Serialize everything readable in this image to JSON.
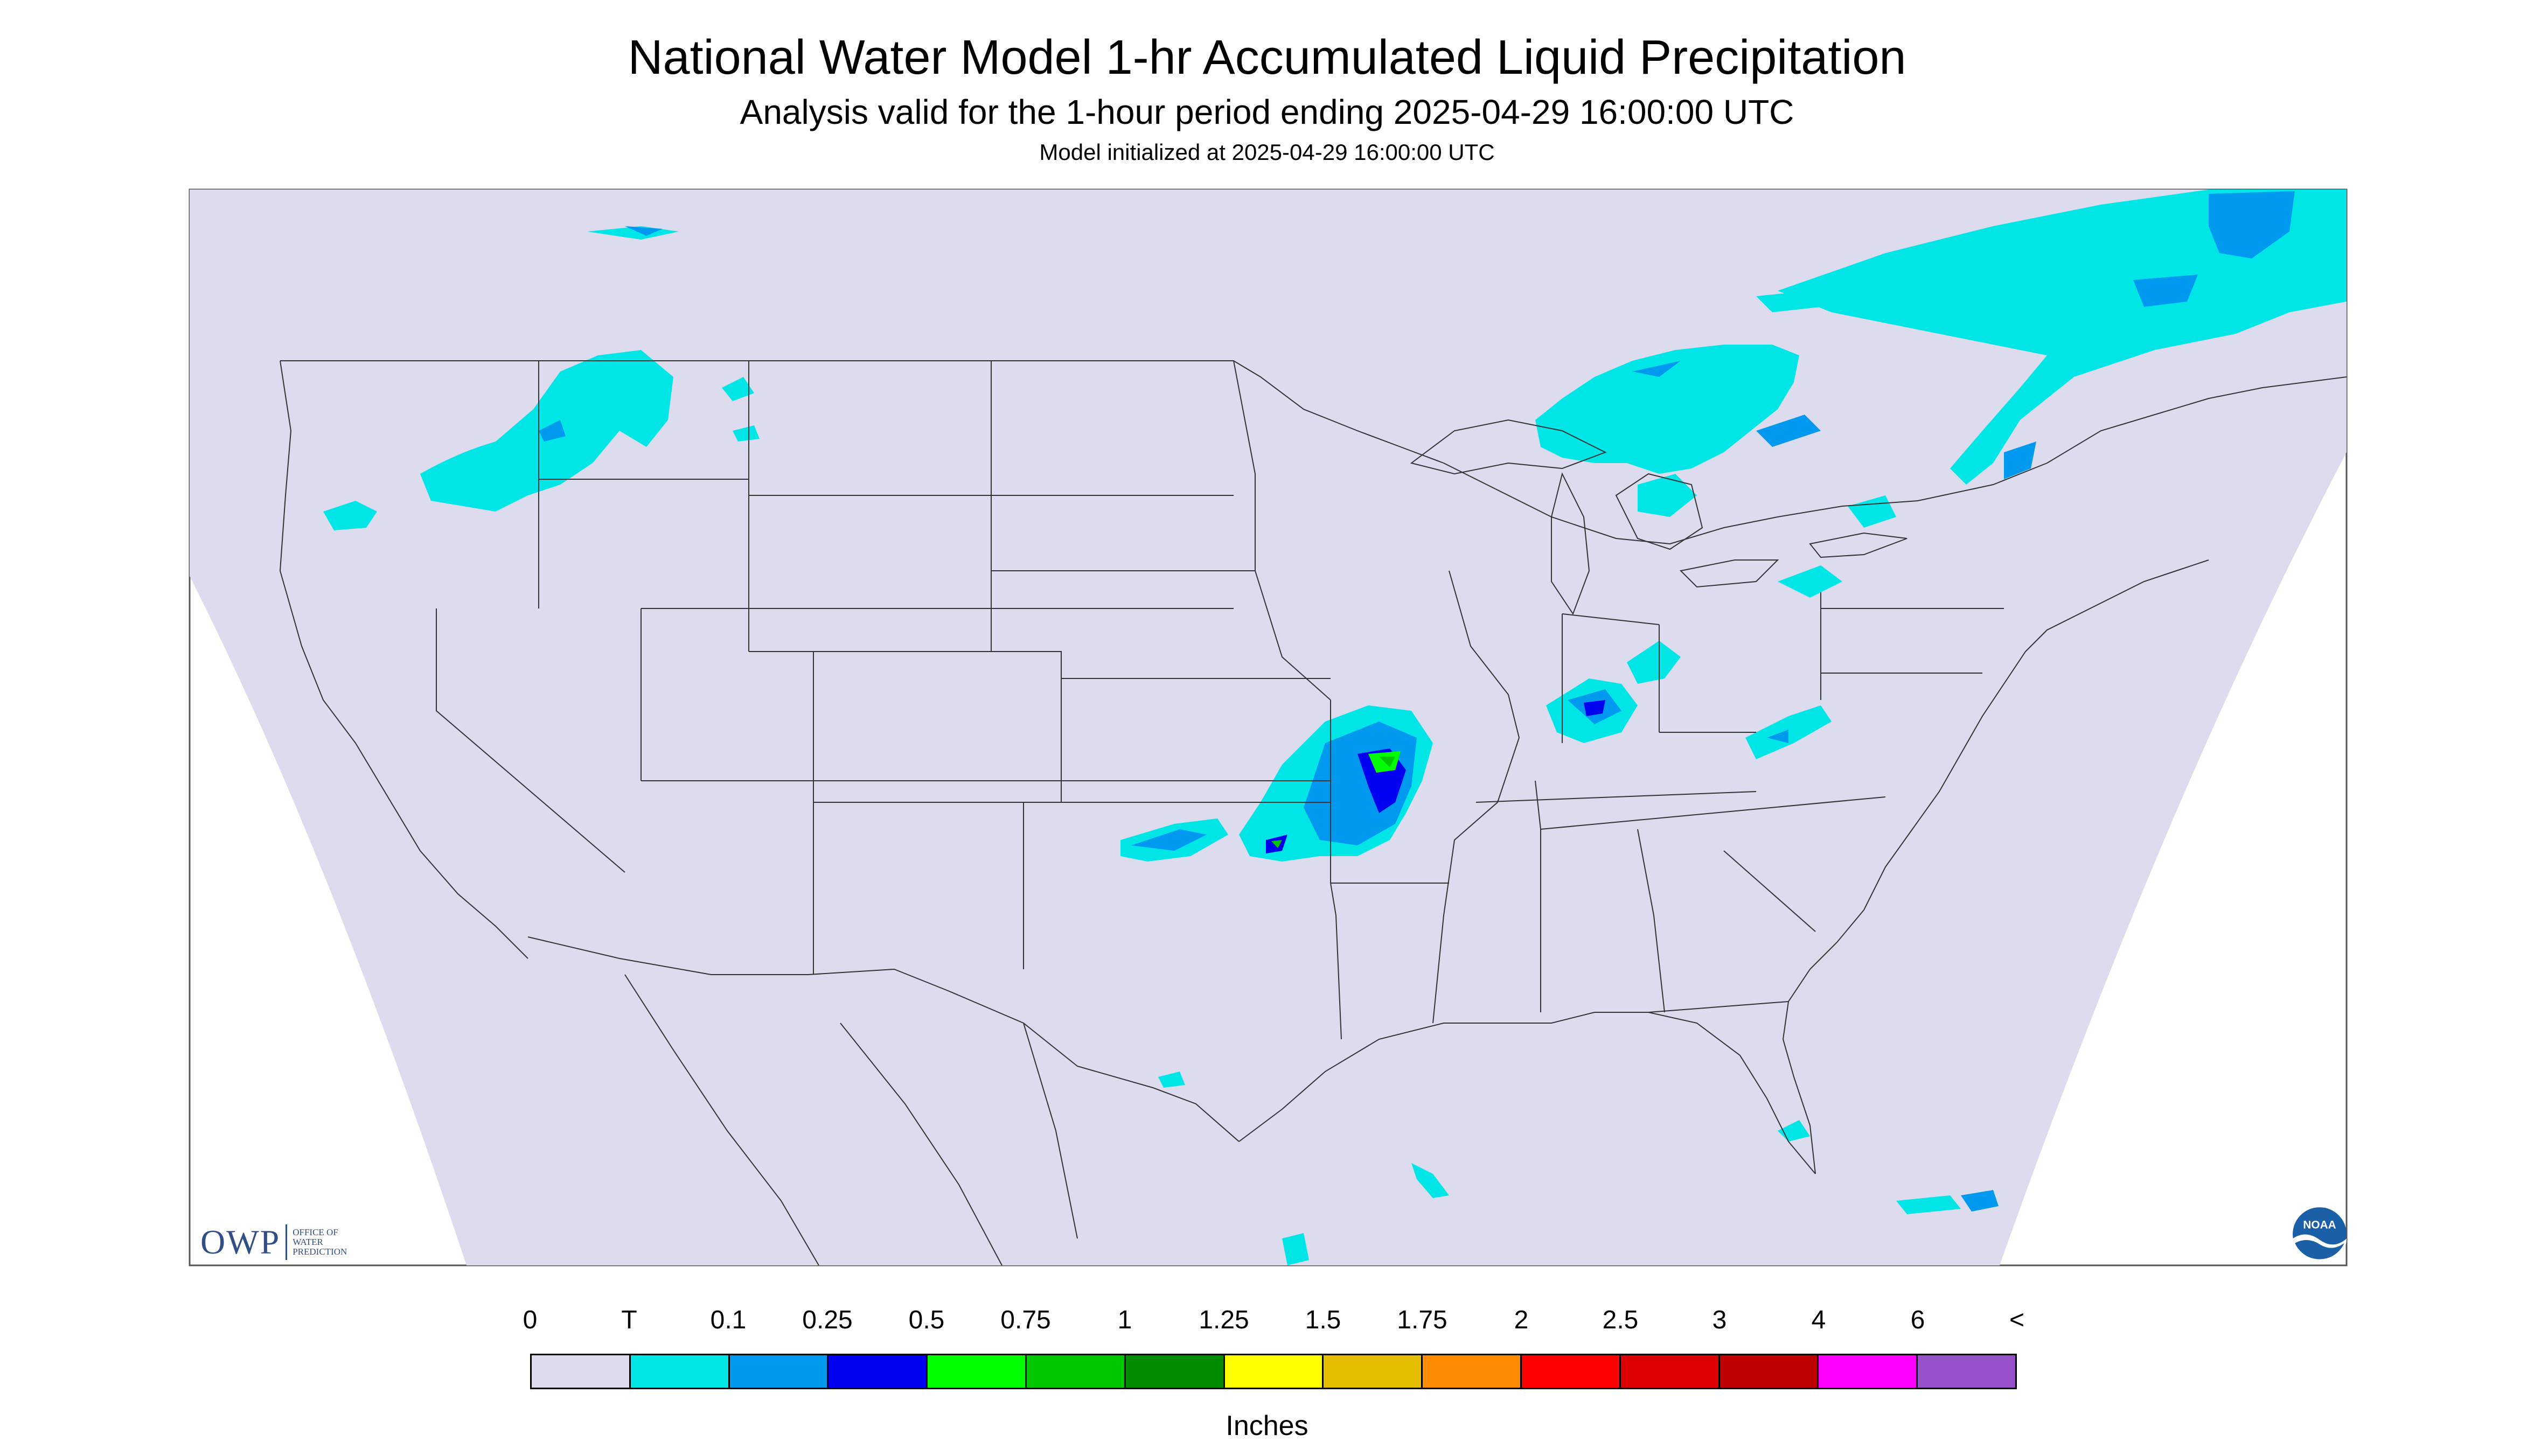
{
  "header": {
    "title": "National Water Model 1-hr Accumulated Liquid Precipitation",
    "subtitle": "Analysis valid for the 1-hour period ending 2025-04-29 16:00:00 UTC",
    "init": "Model initialized at 2025-04-29 16:00:00 UTC"
  },
  "logos": {
    "owp_letters": "OWP",
    "owp_line1": "OFFICE OF",
    "owp_line2": "WATER",
    "owp_line3": "PREDICTION",
    "noaa_text": "NOAA"
  },
  "legend": {
    "units": "Inches",
    "boundary_labels": [
      "0",
      "T",
      "0.1",
      "0.25",
      "0.5",
      "0.75",
      "1",
      "1.25",
      "1.5",
      "1.75",
      "2",
      "2.5",
      "3",
      "4",
      "6",
      "<"
    ],
    "colors": [
      "#dcdcee",
      "#00e6e6",
      "#0099f0",
      "#0000f0",
      "#00ff00",
      "#00c800",
      "#008c00",
      "#ffff00",
      "#e6be00",
      "#ff8c00",
      "#ff0000",
      "#dc0000",
      "#be0000",
      "#ff00ff",
      "#9650c8"
    ]
  },
  "map": {
    "background_color": "#dcdcee",
    "outside_color": "#ffffff",
    "no_precip_color": "#dcdcee"
  }
}
